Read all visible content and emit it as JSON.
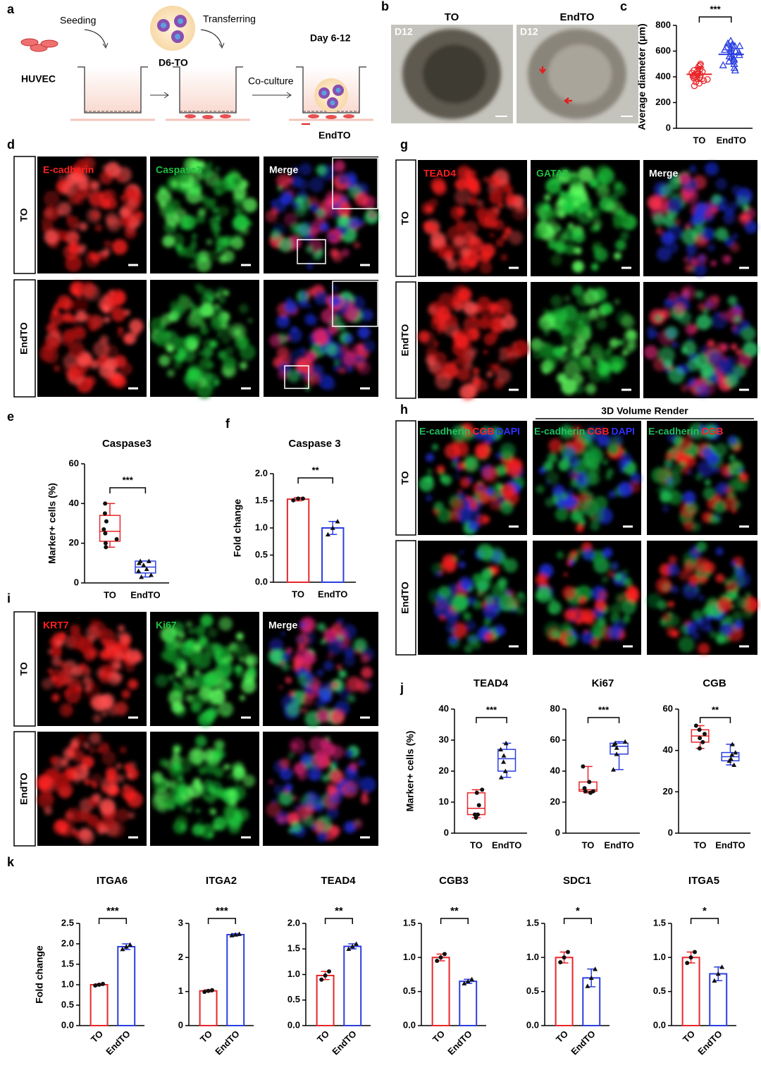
{
  "panel_labels": [
    "a",
    "b",
    "c",
    "d",
    "e",
    "f",
    "g",
    "h",
    "i",
    "j",
    "k"
  ],
  "schematic": {
    "cell": "HUVEC",
    "step1": "Seeding",
    "organoid": "D6-TO",
    "step2": "Transferring",
    "time": "Day 6-12",
    "step3": "Co-culture",
    "product": "EndTO"
  },
  "brightfield": {
    "columns": [
      "TO",
      "EndTO"
    ],
    "day": "D12"
  },
  "panel_d": {
    "channels": [
      "E-cadherin",
      "Caspase3",
      "Merge"
    ],
    "rows": [
      "TO",
      "EndTO"
    ]
  },
  "panel_g": {
    "channels": [
      "TEAD4",
      "GATA3",
      "Merge"
    ],
    "rows": [
      "TO",
      "EndTO"
    ]
  },
  "panel_h": {
    "header": "3D Volume Render",
    "rows": [
      "TO",
      "EndTO"
    ],
    "columns": [
      [
        "E-cadherin",
        "CGB",
        "DAPI"
      ],
      [
        "E-cadherin",
        "CGB",
        "DAPI"
      ],
      [
        "E-cadherin",
        "CGB"
      ]
    ]
  },
  "panel_i": {
    "channels": [
      "KRT7",
      "Ki67",
      "Merge"
    ],
    "rows": [
      "TO",
      "EndTO"
    ]
  },
  "chart_data": [
    {
      "type": "dotplot",
      "y_label": "Average diameter (μm)",
      "categories": [
        "TO",
        "EndTO"
      ],
      "colors": [
        "#e8262a",
        "#2a3fe0"
      ],
      "points": [
        [
          330,
          350,
          360,
          370,
          380,
          390,
          395,
          400,
          405,
          410,
          415,
          420,
          420,
          425,
          430,
          440,
          445,
          450,
          460,
          480,
          490,
          500
        ],
        [
          450,
          470,
          490,
          500,
          520,
          530,
          540,
          550,
          560,
          570,
          580,
          590,
          600,
          610,
          620,
          630,
          640,
          650,
          660,
          640,
          600,
          680
        ]
      ],
      "means": [
        420,
        575
      ],
      "sds": [
        55,
        75
      ],
      "significance": "***",
      "ylim": [
        0,
        800
      ],
      "yticks": [
        0,
        200,
        400,
        600,
        800
      ]
    },
    {
      "type": "box",
      "title": "Caspase3",
      "y_label": "Marker+ cells (%)",
      "categories": [
        "TO",
        "EndTO"
      ],
      "colors": [
        "#e8262a",
        "#2a3fe0"
      ],
      "boxes": [
        {
          "min": 18,
          "q1": 21,
          "median": 26,
          "q3": 34,
          "max": 40,
          "points": [
            18,
            20,
            22,
            25,
            27,
            31,
            35,
            40
          ]
        },
        {
          "min": 3,
          "q1": 5,
          "median": 8,
          "q3": 11,
          "max": 11,
          "points": [
            3,
            4,
            6,
            7,
            9,
            10,
            11,
            11
          ]
        }
      ],
      "significance": "***",
      "ylim": [
        0,
        60
      ],
      "yticks": [
        0,
        20,
        40,
        60
      ]
    },
    {
      "type": "bar",
      "title": "Caspase 3",
      "y_label": "Fold change",
      "categories": [
        "TO",
        "EndTO"
      ],
      "colors": [
        "#e8262a",
        "#2a3fe0"
      ],
      "values": [
        1.53,
        1.0
      ],
      "errors": [
        0.03,
        0.12
      ],
      "points": [
        [
          1.51,
          1.54,
          1.54
        ],
        [
          0.88,
          1.0,
          1.12
        ]
      ],
      "significance": "**",
      "ylim": [
        0,
        2
      ],
      "yticks": [
        {
          "value": 0,
          "label": "0.0"
        },
        0.5,
        {
          "value": 1,
          "label": "1.0"
        },
        1.5,
        {
          "value": 2,
          "label": "2.0"
        }
      ]
    },
    {
      "type": "box",
      "title": "TEAD4",
      "y_label": "Marker+ cells (%)",
      "categories": [
        "TO",
        "EndTO"
      ],
      "colors": [
        "#e8262a",
        "#2a3fe0"
      ],
      "boxes": [
        {
          "min": 5,
          "q1": 6,
          "median": 8,
          "q3": 13,
          "max": 14,
          "points": [
            5,
            6,
            6,
            9,
            13,
            14
          ]
        },
        {
          "min": 18,
          "q1": 20,
          "median": 24,
          "q3": 27,
          "max": 29,
          "points": [
            18,
            20,
            23,
            25,
            27,
            29
          ]
        }
      ],
      "significance": "***",
      "ylim": [
        0,
        40
      ],
      "yticks": [
        0,
        10,
        20,
        30,
        40
      ]
    },
    {
      "type": "box",
      "title": "Ki67",
      "categories": [
        "TO",
        "EndTO"
      ],
      "colors": [
        "#e8262a",
        "#2a3fe0"
      ],
      "boxes": [
        {
          "min": 26,
          "q1": 27,
          "median": 28,
          "q3": 33,
          "max": 43,
          "points": [
            26,
            27,
            27,
            29,
            33,
            43
          ]
        },
        {
          "min": 41,
          "q1": 51,
          "median": 56,
          "q3": 58,
          "max": 59,
          "points": [
            41,
            51,
            55,
            57,
            58,
            59
          ]
        }
      ],
      "significance": "***",
      "ylim": [
        0,
        80
      ],
      "yticks": [
        0,
        20,
        40,
        60,
        80
      ]
    },
    {
      "type": "box",
      "title": "CGB",
      "categories": [
        "TO",
        "EndTO"
      ],
      "colors": [
        "#e8262a",
        "#2a3fe0"
      ],
      "boxes": [
        {
          "min": 41,
          "q1": 44,
          "median": 47,
          "q3": 50,
          "max": 52,
          "points": [
            41,
            44,
            46,
            48,
            50,
            52
          ]
        },
        {
          "min": 33,
          "q1": 35,
          "median": 37,
          "q3": 39,
          "max": 43,
          "points": [
            33,
            35,
            36,
            38,
            39,
            43
          ]
        }
      ],
      "significance": "**",
      "ylim": [
        0,
        60
      ],
      "yticks": [
        0,
        20,
        40,
        60
      ]
    },
    {
      "type": "bar",
      "title": "ITGA6",
      "y_label": "Fold change",
      "categories": [
        "TO",
        "EndTO"
      ],
      "colors": [
        "#e8262a",
        "#2a3fe0"
      ],
      "values": [
        1.0,
        1.93
      ],
      "errors": [
        0.02,
        0.07
      ],
      "points": [
        [
          0.98,
          1.0,
          1.02
        ],
        [
          1.87,
          1.93,
          1.98
        ]
      ],
      "significance": "***",
      "ylim": [
        0,
        2.5
      ],
      "yticks": [
        {
          "value": 0,
          "label": "0.0"
        },
        0.5,
        {
          "value": 1,
          "label": "1.0"
        },
        1.5,
        {
          "value": 2,
          "label": "2.0"
        },
        2.5
      ]
    },
    {
      "type": "bar",
      "title": "ITGA2",
      "categories": [
        "TO",
        "EndTO"
      ],
      "colors": [
        "#e8262a",
        "#2a3fe0"
      ],
      "values": [
        1.02,
        2.67
      ],
      "errors": [
        0.03,
        0.03
      ],
      "points": [
        [
          0.99,
          1.02,
          1.04
        ],
        [
          2.65,
          2.67,
          2.69
        ]
      ],
      "significance": "***",
      "ylim": [
        0,
        3
      ],
      "yticks": [
        0,
        1,
        2,
        3
      ]
    },
    {
      "type": "bar",
      "title": "TEAD4",
      "categories": [
        "TO",
        "EndTO"
      ],
      "colors": [
        "#e8262a",
        "#2a3fe0"
      ],
      "values": [
        0.98,
        1.55
      ],
      "errors": [
        0.08,
        0.05
      ],
      "points": [
        [
          0.9,
          0.98,
          1.06
        ],
        [
          1.5,
          1.55,
          1.6
        ]
      ],
      "significance": "**",
      "ylim": [
        0,
        2
      ],
      "yticks": [
        {
          "value": 0,
          "label": "0.0"
        },
        0.5,
        {
          "value": 1,
          "label": "1.0"
        },
        1.5,
        {
          "value": 2,
          "label": "2.0"
        }
      ]
    },
    {
      "type": "bar",
      "title": "CGB3",
      "categories": [
        "TO",
        "EndTO"
      ],
      "colors": [
        "#e8262a",
        "#2a3fe0"
      ],
      "values": [
        1.0,
        0.65
      ],
      "errors": [
        0.05,
        0.03
      ],
      "points": [
        [
          0.95,
          1.0,
          1.05
        ],
        [
          0.62,
          0.65,
          0.68
        ]
      ],
      "significance": "**",
      "ylim": [
        0,
        1.5
      ],
      "yticks": [
        {
          "value": 0,
          "label": "0.0"
        },
        0.5,
        {
          "value": 1,
          "label": "1.0"
        },
        1.5
      ]
    },
    {
      "type": "bar",
      "title": "SDC1",
      "categories": [
        "TO",
        "EndTO"
      ],
      "colors": [
        "#e8262a",
        "#2a3fe0"
      ],
      "values": [
        1.0,
        0.7
      ],
      "errors": [
        0.08,
        0.13
      ],
      "points": [
        [
          0.93,
          1.0,
          1.08
        ],
        [
          0.58,
          0.7,
          0.83
        ]
      ],
      "significance": "*",
      "ylim": [
        0,
        1.5
      ],
      "yticks": [
        {
          "value": 0,
          "label": "0.0"
        },
        0.5,
        {
          "value": 1,
          "label": "1.0"
        },
        1.5
      ]
    },
    {
      "type": "bar",
      "title": "ITGA5",
      "categories": [
        "TO",
        "EndTO"
      ],
      "colors": [
        "#e8262a",
        "#2a3fe0"
      ],
      "values": [
        1.0,
        0.76
      ],
      "errors": [
        0.08,
        0.1
      ],
      "points": [
        [
          0.92,
          1.0,
          1.08
        ],
        [
          0.66,
          0.76,
          0.86
        ]
      ],
      "significance": "*",
      "ylim": [
        0,
        1.5
      ],
      "yticks": [
        {
          "value": 0,
          "label": "0.0"
        },
        0.5,
        {
          "value": 1,
          "label": "1.0"
        },
        1.5
      ]
    }
  ]
}
